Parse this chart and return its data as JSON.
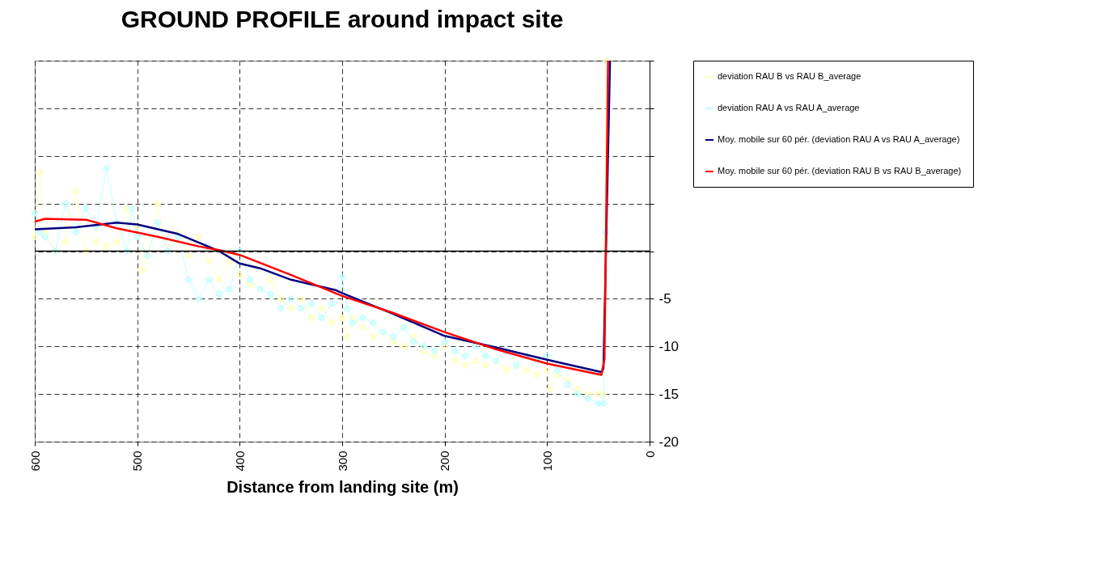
{
  "chart_data": {
    "type": "line",
    "title": "GROUND PROFILE around impact site",
    "xlabel": "Distance from landing site (m)",
    "xlim": [
      600,
      0
    ],
    "xticks": [
      600,
      500,
      400,
      300,
      200,
      100,
      0
    ],
    "ylim": [
      -20,
      20
    ],
    "yticks": [
      -20,
      -15,
      -10,
      -5,
      {
        "value": 0,
        "label": null
      },
      {
        "value": 5,
        "label": null
      },
      {
        "value": 10,
        "label": null
      },
      {
        "value": 15,
        "label": null
      },
      {
        "value": 20,
        "label": null
      }
    ],
    "grid": true,
    "legend": "right",
    "line_style": "solid",
    "ref_lines": [
      {
        "axis": "y",
        "value": 0,
        "color": "#000000",
        "line_style": "solid"
      }
    ],
    "series": [
      {
        "name": "deviation RAU B vs RAU B_average",
        "color": "#ffffc0",
        "marker": "cross",
        "x": [
          600,
          595,
          590,
          580,
          570,
          560,
          550,
          540,
          530,
          520,
          510,
          500,
          495,
          490,
          480,
          470,
          460,
          450,
          440,
          430,
          420,
          410,
          400,
          390,
          380,
          370,
          360,
          350,
          340,
          330,
          320,
          310,
          300,
          295,
          290,
          280,
          270,
          260,
          250,
          240,
          230,
          220,
          210,
          200,
          190,
          180,
          170,
          160,
          150,
          140,
          130,
          120,
          110,
          100,
          97,
          90,
          80,
          70,
          60,
          50,
          45,
          42
        ],
        "values": [
          1.5,
          8.3,
          2,
          0,
          1,
          6.3,
          0,
          1,
          0.5,
          1,
          4.5,
          2.5,
          -2,
          -0.5,
          5,
          0,
          2,
          -0.5,
          1.5,
          -1,
          -3,
          -1,
          -2.5,
          -3.5,
          -4,
          -3,
          -5,
          -6,
          -5,
          -7,
          -6,
          -7.5,
          -7,
          -9,
          -7,
          -8,
          -9,
          -8.5,
          -9.5,
          -10,
          -9,
          -10.5,
          -11,
          -10,
          -11.5,
          -12,
          -11.5,
          -12,
          -11.5,
          -12.5,
          -12,
          -12.5,
          -13,
          -12.5,
          -14.5,
          -13,
          -13.5,
          -14.5,
          -15,
          -15,
          -15,
          20
        ]
      },
      {
        "name": "deviation RAU A vs RAU A_average",
        "color": "#c0ffff",
        "marker": "cross",
        "x": [
          600,
          595,
          590,
          580,
          570,
          560,
          550,
          540,
          530,
          520,
          510,
          505,
          500,
          490,
          480,
          470,
          460,
          450,
          440,
          430,
          420,
          410,
          400,
          390,
          380,
          370,
          360,
          350,
          340,
          330,
          320,
          310,
          300,
          295,
          290,
          280,
          270,
          260,
          250,
          240,
          230,
          220,
          210,
          200,
          190,
          180,
          170,
          160,
          150,
          140,
          130,
          120,
          110,
          100,
          90,
          80,
          70,
          60,
          50,
          45,
          43
        ],
        "values": [
          4,
          2,
          1.5,
          0,
          5,
          2,
          4.5,
          2.5,
          8.7,
          3,
          0,
          4.5,
          1.5,
          -0.5,
          3,
          0,
          1.5,
          -3,
          -5,
          -3,
          -4.5,
          -4,
          0,
          -3,
          -4,
          -4.5,
          -6,
          -5,
          -6,
          -5.5,
          -7,
          -5.5,
          -2.7,
          -6,
          -7.5,
          -7,
          -7.5,
          -8.5,
          -9,
          -8,
          -9.5,
          -10,
          -10.5,
          -9.5,
          -10.5,
          -11,
          -10,
          -11,
          -11.5,
          -10.5,
          -12,
          -11,
          -11.5,
          -11,
          -12.5,
          -14,
          -15,
          -15.5,
          -16,
          -16,
          2
        ]
      },
      {
        "name": "Moy. mobile sur 60 pér. (deviation RAU A vs RAU A_average)",
        "color": "#000080",
        "marker": "none",
        "x": [
          600,
          560,
          520,
          500,
          460,
          440,
          420,
          400,
          380,
          350,
          306,
          300,
          250,
          200,
          150,
          100,
          47,
          45,
          38.6
        ],
        "values": [
          2.3,
          2.5,
          3.0,
          2.8,
          1.8,
          0.9,
          0,
          -1.3,
          -1.8,
          -3.0,
          -4.1,
          -4.4,
          -6.6,
          -8.9,
          -10.1,
          -11.4,
          -12.7,
          -12.3,
          20
        ]
      },
      {
        "name": "Moy. mobile sur 60 pér. (deviation RAU B vs RAU B_average)",
        "color": "#ff0000",
        "marker": "none",
        "x": [
          600,
          590,
          550,
          520,
          480,
          440,
          420,
          400,
          350,
          300,
          250,
          200,
          150,
          100,
          47,
          44,
          40.5
        ],
        "values": [
          3.1,
          3.4,
          3.3,
          2.4,
          1.5,
          0.5,
          0.1,
          -0.4,
          -2.5,
          -4.7,
          -6.5,
          -8.5,
          -10.3,
          -11.8,
          -13.0,
          -11.3,
          20
        ]
      }
    ]
  }
}
